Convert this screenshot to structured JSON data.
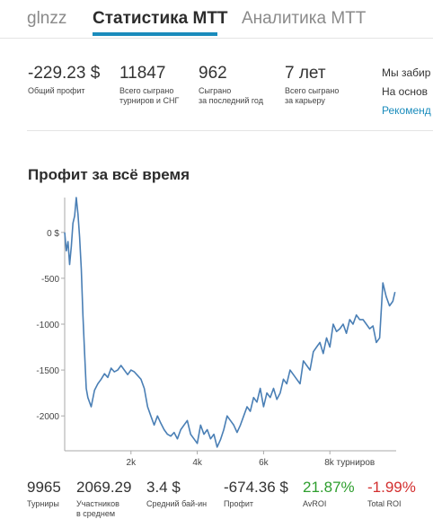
{
  "tabs": [
    {
      "label": "glnzz"
    },
    {
      "label": "Статистика MTT"
    },
    {
      "label": "Аналитика MTT"
    }
  ],
  "stats": [
    {
      "value": "-229.23 $",
      "label": "Общий профит"
    },
    {
      "value": "11847",
      "label_lines": [
        "Всего сыграно",
        "турниров и СНГ"
      ]
    },
    {
      "value": "962",
      "label_lines": [
        "Сыграно",
        "за последний год"
      ]
    },
    {
      "value": "7 лет",
      "label_lines": [
        "Всего сыграно",
        "за карьеру"
      ]
    }
  ],
  "promo": {
    "line1": "Мы забир",
    "line2": "На основ",
    "link": "Рекоменд"
  },
  "section_title": "Профит за всё время",
  "chart_data": {
    "type": "line",
    "title": "",
    "xlabel": "",
    "ylabel": "",
    "x_tick_labels": [
      "2k",
      "4k",
      "6k",
      "8k турниров"
    ],
    "x_ticks": [
      2000,
      4000,
      6000,
      8000
    ],
    "y_tick_labels": [
      "0 $",
      "-500",
      "-1000",
      "-1500",
      "-2000"
    ],
    "y_ticks": [
      0,
      -500,
      -1000,
      -1500,
      -2000
    ],
    "xlim": [
      0,
      10000
    ],
    "ylim": [
      -2380,
      380
    ],
    "grid": false,
    "series": [
      {
        "color": "#4a7fb5",
        "x": [
          0,
          50,
          100,
          150,
          200,
          250,
          300,
          350,
          400,
          450,
          500,
          550,
          600,
          650,
          700,
          800,
          900,
          1000,
          1100,
          1200,
          1300,
          1400,
          1500,
          1600,
          1700,
          1800,
          1900,
          2000,
          2100,
          2200,
          2300,
          2400,
          2500,
          2600,
          2700,
          2800,
          2900,
          3000,
          3100,
          3200,
          3300,
          3400,
          3500,
          3600,
          3700,
          3800,
          3900,
          4000,
          4100,
          4200,
          4300,
          4400,
          4500,
          4600,
          4700,
          4800,
          4900,
          5000,
          5100,
          5200,
          5300,
          5400,
          5500,
          5600,
          5700,
          5800,
          5900,
          6000,
          6100,
          6200,
          6300,
          6400,
          6500,
          6600,
          6700,
          6800,
          6900,
          7000,
          7100,
          7200,
          7300,
          7400,
          7500,
          7600,
          7700,
          7800,
          7900,
          8000,
          8100,
          8200,
          8300,
          8400,
          8500,
          8600,
          8700,
          8800,
          8900,
          9000,
          9100,
          9200,
          9300,
          9400,
          9500,
          9600,
          9700,
          9800,
          9900,
          9965
        ],
        "y": [
          0,
          -200,
          -100,
          -350,
          -150,
          100,
          180,
          380,
          200,
          -50,
          -400,
          -900,
          -1300,
          -1700,
          -1800,
          -1900,
          -1720,
          -1650,
          -1600,
          -1540,
          -1580,
          -1480,
          -1520,
          -1500,
          -1450,
          -1500,
          -1550,
          -1500,
          -1520,
          -1560,
          -1600,
          -1700,
          -1900,
          -2000,
          -2100,
          -2000,
          -2080,
          -2150,
          -2200,
          -2220,
          -2180,
          -2250,
          -2150,
          -2100,
          -2050,
          -2200,
          -2250,
          -2300,
          -2100,
          -2200,
          -2150,
          -2250,
          -2200,
          -2340,
          -2260,
          -2150,
          -2000,
          -2050,
          -2100,
          -2180,
          -2100,
          -2000,
          -1900,
          -1950,
          -1800,
          -1850,
          -1700,
          -1900,
          -1750,
          -1800,
          -1700,
          -1820,
          -1750,
          -1600,
          -1650,
          -1500,
          -1550,
          -1600,
          -1650,
          -1400,
          -1450,
          -1500,
          -1300,
          -1250,
          -1200,
          -1320,
          -1150,
          -1250,
          -1000,
          -1080,
          -1050,
          -1000,
          -1100,
          -950,
          -1000,
          -900,
          -950,
          -950,
          -1000,
          -1050,
          -1020,
          -1200,
          -1150,
          -550,
          -700,
          -800,
          -750,
          -650
        ]
      }
    ]
  },
  "bottom_stats": [
    {
      "value": "9965",
      "label_lines": [
        "Турниры"
      ],
      "color": "#333333"
    },
    {
      "value": "2069.29",
      "label_lines": [
        "Участников",
        "в среднем"
      ],
      "color": "#333333"
    },
    {
      "value": "3.4 $",
      "label_lines": [
        "Средний бай-ин"
      ],
      "color": "#333333"
    },
    {
      "value": "-674.36 $",
      "label_lines": [
        "Профит"
      ],
      "color": "#333333"
    },
    {
      "value": "21.87%",
      "label_lines": [
        "AvROI"
      ],
      "color": "#2e9e2e"
    },
    {
      "value": "-1.99%",
      "label_lines": [
        "Total ROI"
      ],
      "color": "#d32f2f"
    }
  ],
  "colors": {
    "accent": "#1a8cbc",
    "line": "#4a7fb5",
    "axis": "#aaaaaa",
    "positive": "#2e9e2e",
    "negative": "#d32f2f"
  }
}
